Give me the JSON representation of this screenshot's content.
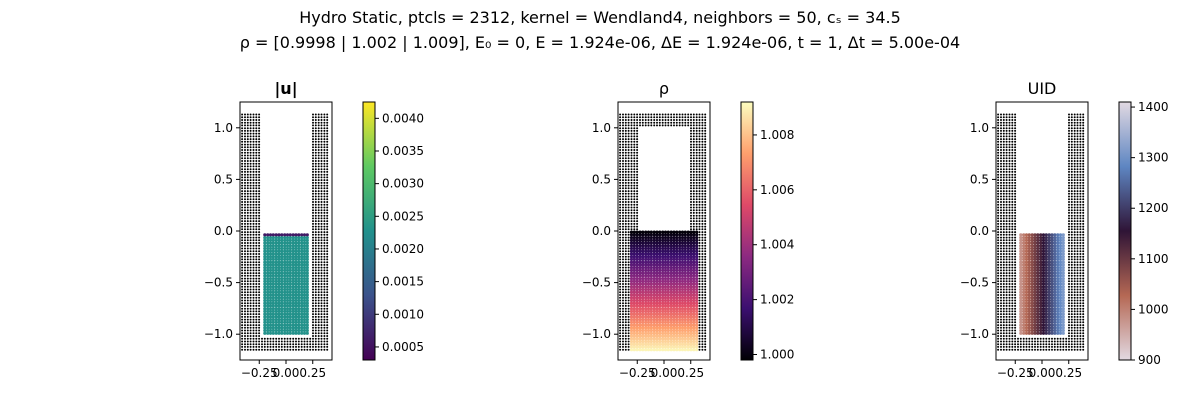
{
  "header": {
    "title_line1": "Hydro Static, ptcls = 2312, kernel = Wendland4, neighbors = 50, cₛ = 34.5",
    "title_line2": "ρ = [0.9998 | 1.002 | 1.009], E₀ = 0, E = 1.924e-06, ΔE = 1.924e-06, t = 1, Δt = 5.00e-04"
  },
  "chart_data": [
    {
      "type": "scatter",
      "title": "|u|",
      "xlim": [
        -0.43,
        0.43
      ],
      "ylim": [
        -1.25,
        1.25
      ],
      "xticks": [
        "−0.25",
        "0.00",
        "0.25"
      ],
      "yticks": [
        "−1.0",
        "−0.5",
        "0.0",
        "0.5",
        "1.0"
      ],
      "boundary_color": "#000000",
      "fluid_region": {
        "x": [
          -0.22,
          0.22
        ],
        "y": [
          -1.0,
          -0.02
        ]
      },
      "colormap": "viridis",
      "colorbar": {
        "min": 0.0003,
        "max": 0.00425,
        "ticks": [
          "0.0005",
          "0.0010",
          "0.0015",
          "0.0020",
          "0.0025",
          "0.0030",
          "0.0035",
          "0.0040"
        ]
      },
      "fluid_interior_value": 0.0023,
      "fluid_edge_value": 0.0041,
      "fluid_top_value": 0.0006
    },
    {
      "type": "scatter",
      "title": "ρ",
      "xlim": [
        -0.43,
        0.43
      ],
      "ylim": [
        -1.25,
        1.25
      ],
      "xticks": [
        "−0.25",
        "0.00",
        "0.25"
      ],
      "yticks": [
        "−1.0",
        "−0.5",
        "0.0",
        "0.5",
        "1.0"
      ],
      "boundary_color": "#000000",
      "fluid_region": {
        "x": [
          -0.22,
          0.22
        ],
        "y": [
          -1.0,
          -0.02
        ]
      },
      "colormap": "magma",
      "colorbar": {
        "min": 0.9998,
        "max": 1.0092,
        "ticks": [
          "1.000",
          "1.002",
          "1.004",
          "1.006",
          "1.008"
        ]
      },
      "rho_range": [
        0.9998,
        1.009
      ]
    },
    {
      "type": "scatter",
      "title": "UID",
      "xlim": [
        -0.43,
        0.43
      ],
      "ylim": [
        -1.25,
        1.25
      ],
      "xticks": [
        "−0.25",
        "0.00",
        "0.25"
      ],
      "yticks": [
        "−1.0",
        "−0.5",
        "0.0",
        "0.5",
        "1.0"
      ],
      "boundary_color": "#000000",
      "fluid_region": {
        "x": [
          -0.22,
          0.22
        ],
        "y": [
          -1.0,
          -0.02
        ]
      },
      "colormap": "twilight",
      "colorbar": {
        "min": 900,
        "max": 1410,
        "ticks": [
          "900",
          "1000",
          "1100",
          "1200",
          "1300",
          "1400"
        ]
      },
      "uid_range": [
        950,
        1380
      ]
    }
  ]
}
